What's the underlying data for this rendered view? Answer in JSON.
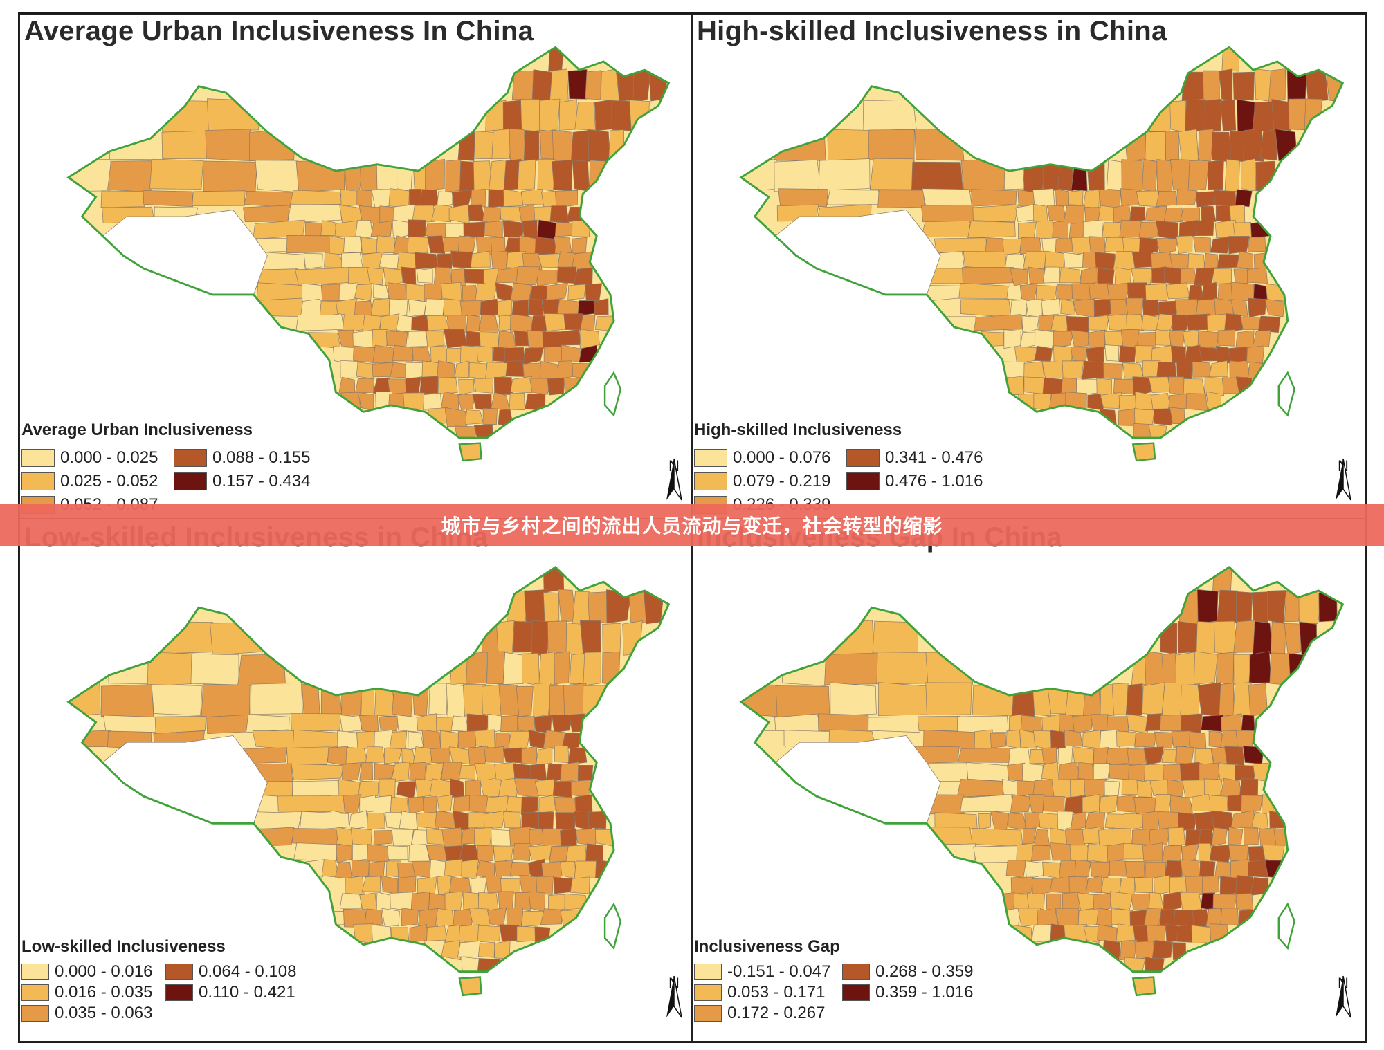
{
  "banner": {
    "text": "城市与乡村之间的流出人员流动与变迁，社会转型的缩影"
  },
  "colors": {
    "c1": "#fbe39a",
    "c2": "#f3b955",
    "c3": "#e49a47",
    "c4": "#b4582a",
    "c5": "#6e1410",
    "coast": "#3fa33a",
    "border": "#8a7a6a",
    "nodata": "#ffffff",
    "accent": "#ec685a"
  },
  "panels": [
    {
      "id": "avg",
      "title": "Average Urban Inclusiveness In China",
      "legend_title": "Average Urban Inclusiveness",
      "north": "N",
      "legend": [
        {
          "label": "0.000 - 0.025",
          "color": "#fbe39a"
        },
        {
          "label": "0.088 - 0.155",
          "color": "#b4582a"
        },
        {
          "label": "0.025 - 0.052",
          "color": "#f3b955"
        },
        {
          "label": "0.157 - 0.434",
          "color": "#6e1410"
        },
        {
          "label": "0.052 - 0.087",
          "color": "#e49a47"
        }
      ]
    },
    {
      "id": "high",
      "title": "High-skilled Inclusiveness in China",
      "legend_title": "High-skilled Inclusiveness",
      "north": "N",
      "legend": [
        {
          "label": "0.000 - 0.076",
          "color": "#fbe39a"
        },
        {
          "label": "0.341 - 0.476",
          "color": "#b4582a"
        },
        {
          "label": "0.079 - 0.219",
          "color": "#f3b955"
        },
        {
          "label": "0.476 - 1.016",
          "color": "#6e1410"
        },
        {
          "label": "0.226 - 0.339",
          "color": "#e49a47"
        }
      ]
    },
    {
      "id": "low",
      "title": "Low-skilled Inclusiveness in China",
      "legend_title": "Low-skilled Inclusiveness",
      "north": "N",
      "legend": [
        {
          "label": "0.000 - 0.016",
          "color": "#fbe39a"
        },
        {
          "label": "0.064 - 0.108",
          "color": "#b4582a"
        },
        {
          "label": "0.016 - 0.035",
          "color": "#f3b955"
        },
        {
          "label": "0.110 - 0.421",
          "color": "#6e1410"
        },
        {
          "label": "0.035 - 0.063",
          "color": "#e49a47"
        }
      ]
    },
    {
      "id": "gap",
      "title": "Inclusiveness Gap In China",
      "legend_title": "Inclusiveness Gap",
      "north": "N",
      "legend": [
        {
          "label": "-0.151 - 0.047",
          "color": "#fbe39a"
        },
        {
          "label": "0.268 - 0.359",
          "color": "#b4582a"
        },
        {
          "label": "0.053 - 0.171",
          "color": "#f3b955"
        },
        {
          "label": "0.359 - 1.016",
          "color": "#6e1410"
        },
        {
          "label": "0.172 - 0.267",
          "color": "#e49a47"
        }
      ]
    }
  ]
}
